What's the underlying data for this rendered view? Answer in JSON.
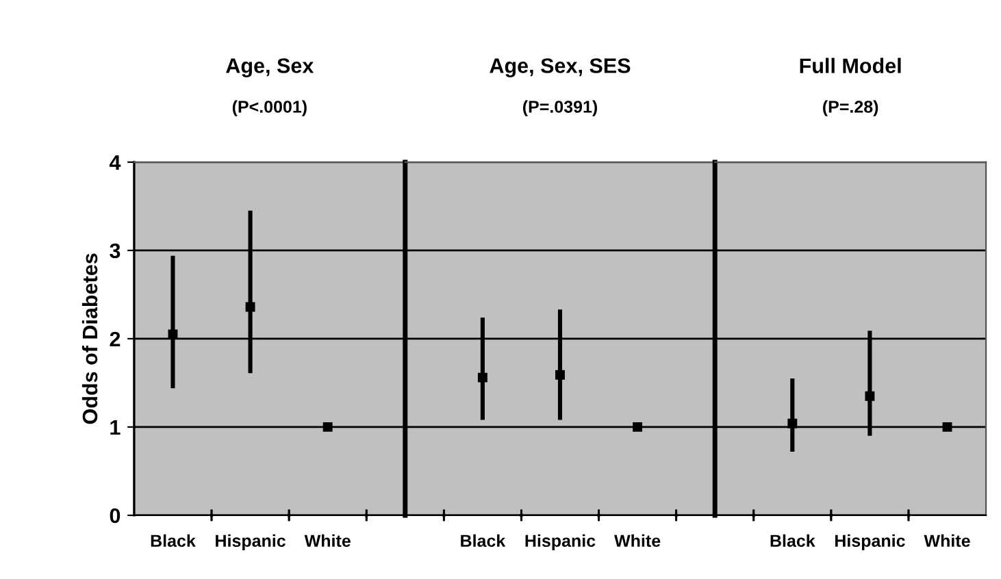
{
  "chart_data": [
    {
      "type": "scatter",
      "title": "Age, Sex",
      "subtitle": "(P<.0001)",
      "ylabel": "Odds of Diabetes",
      "categories": [
        "Black",
        "Hispanic",
        "White"
      ],
      "values": [
        2.05,
        2.36,
        1.0
      ],
      "errors": [
        [
          1.44,
          2.94
        ],
        [
          1.61,
          3.45
        ],
        null
      ],
      "color": "#000000",
      "marker": "square",
      "ylim": [
        0,
        4
      ],
      "yticks": [
        0,
        1,
        2,
        3,
        4
      ],
      "grid": "y"
    },
    {
      "type": "scatter",
      "title": "Age, Sex, SES",
      "subtitle": "(P=.0391)",
      "categories": [
        "Black",
        "Hispanic",
        "White"
      ],
      "values": [
        1.56,
        1.59,
        1.0
      ],
      "errors": [
        [
          1.08,
          2.24
        ],
        [
          1.08,
          2.33
        ],
        null
      ],
      "color": "#000000",
      "marker": "square",
      "ylim": [
        0,
        4
      ],
      "grid": "y",
      "tick_labels": "x"
    },
    {
      "type": "scatter",
      "title": "Full Model",
      "subtitle": "(P=.28)",
      "categories": [
        "Black",
        "Hispanic",
        "White"
      ],
      "values": [
        1.04,
        1.35,
        1.0
      ],
      "errors": [
        [
          0.72,
          1.55
        ],
        [
          0.9,
          2.09
        ],
        null
      ],
      "color": "#000000",
      "marker": "square",
      "ylim": [
        0,
        4
      ],
      "grid": "y",
      "tick_labels": "x"
    }
  ]
}
